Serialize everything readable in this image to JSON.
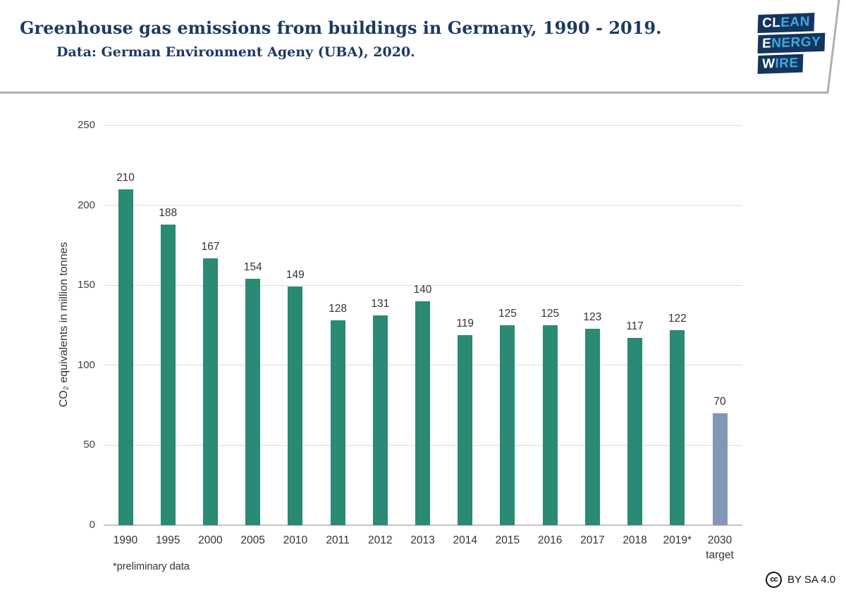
{
  "header": {
    "title": "Greenhouse gas emissions from buildings in Germany, 1990 - 2019.",
    "subtitle": "Data: German Environment Ageny (UBA), 2020.",
    "logo": {
      "rows": [
        {
          "white": "CL",
          "blue": "EAN"
        },
        {
          "white": "E",
          "blue": "NERGY"
        },
        {
          "white": "W",
          "blue": "IRE"
        }
      ],
      "bg_color": "#13355e",
      "blue_color": "#3fa9de"
    }
  },
  "chart_data": {
    "type": "bar",
    "title": "Greenhouse gas emissions from buildings in Germany, 1990 - 2019.",
    "categories": [
      "1990",
      "1995",
      "2000",
      "2005",
      "2010",
      "2011",
      "2012",
      "2013",
      "2014",
      "2015",
      "2016",
      "2017",
      "2018",
      "2019*",
      "2030\ntarget"
    ],
    "values": [
      210,
      188,
      167,
      154,
      149,
      128,
      131,
      140,
      119,
      125,
      125,
      123,
      117,
      122,
      70
    ],
    "xlabel": "",
    "ylabel": "CO₂ equivalents in million tonnes",
    "ylim": [
      0,
      250
    ],
    "yticks": [
      0,
      50,
      100,
      150,
      200,
      250
    ],
    "grid": true,
    "legend": "none",
    "bar_color": "#2a8a74",
    "target_bar_color": "#8296b5",
    "target_category": "2030\ntarget",
    "footnote": "*preliminary data"
  },
  "footer": {
    "cc_icon": "cc",
    "license": "BY SA 4.0"
  }
}
